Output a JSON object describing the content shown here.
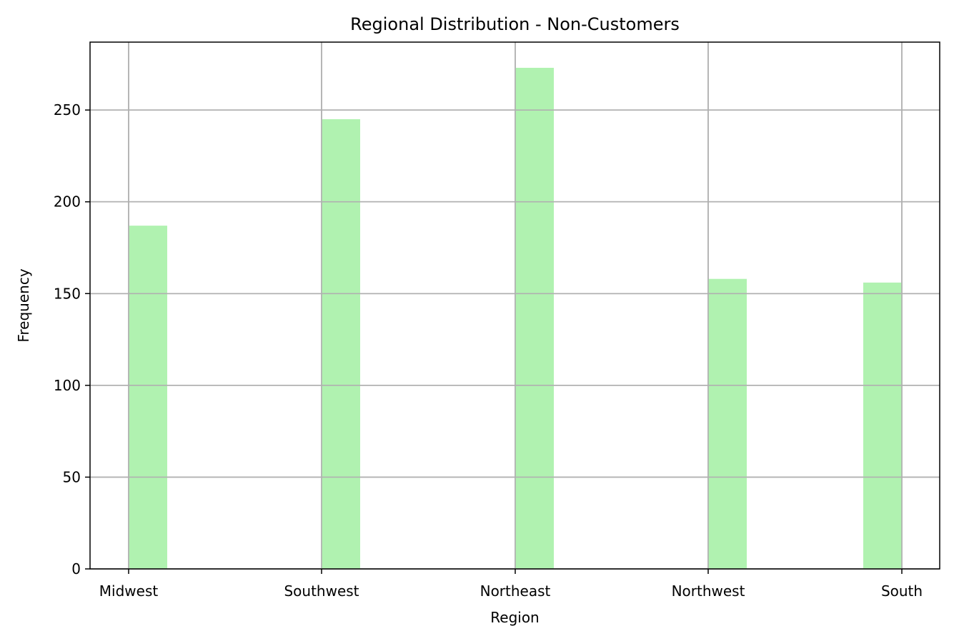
{
  "chart_data": {
    "type": "bar",
    "title": "Regional Distribution - Non-Customers",
    "xlabel": "Region",
    "ylabel": "Frequency",
    "categories": [
      "Midwest",
      "Southwest",
      "Northeast",
      "Northwest",
      "South"
    ],
    "values": [
      187,
      245,
      273,
      158,
      156
    ],
    "ylim": [
      0,
      287
    ],
    "yticks": [
      0,
      50,
      100,
      150,
      200,
      250
    ],
    "grid": true,
    "bar_color": "#b0f2b0"
  }
}
